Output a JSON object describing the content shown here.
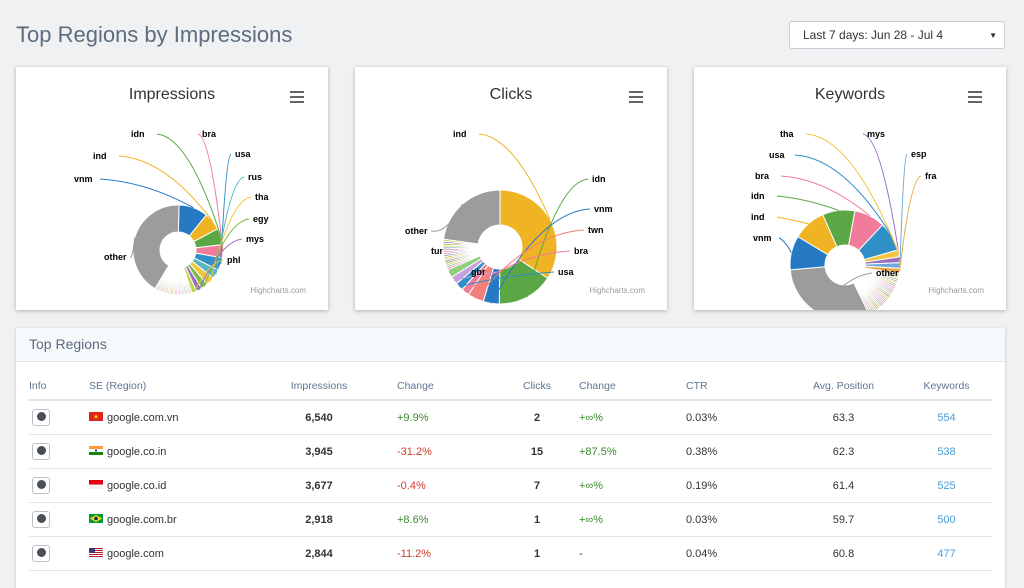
{
  "page": {
    "title": "Top Regions by Impressions"
  },
  "date_range": {
    "selected": "Last 7 days: Jun 28 - Jul 4"
  },
  "credits": "Highcharts.com",
  "colors": {
    "blue": "#2679c3",
    "orange": "#f0b323",
    "green": "#5aa845",
    "gray": "#9c9c9c",
    "pink": "#f07b9a",
    "salmon": "#f3807a",
    "teal": "#57b6c1",
    "purple": "#9b6fbd",
    "lime": "#bcd64d"
  },
  "chart_data": [
    {
      "type": "pie",
      "variant": "donut",
      "title": "Impressions",
      "slices": [
        {
          "name": "vnm",
          "value": 6540
        },
        {
          "name": "ind",
          "value": 3945
        },
        {
          "name": "idn",
          "value": 3677
        },
        {
          "name": "bra",
          "value": 2918
        },
        {
          "name": "usa",
          "value": 2844
        },
        {
          "name": "rus",
          "value": 2100
        },
        {
          "name": "tha",
          "value": 1900
        },
        {
          "name": "egy",
          "value": 1500
        },
        {
          "name": "mys",
          "value": 1300
        },
        {
          "name": "phl",
          "value": 1100
        },
        {
          "name": "other",
          "value": 26000
        }
      ]
    },
    {
      "type": "pie",
      "variant": "donut",
      "title": "Clicks",
      "slices": [
        {
          "name": "ind",
          "value": 15
        },
        {
          "name": "idn",
          "value": 7
        },
        {
          "name": "vnm",
          "value": 2
        },
        {
          "name": "twn",
          "value": 2
        },
        {
          "name": "bra",
          "value": 1
        },
        {
          "name": "usa",
          "value": 1
        },
        {
          "name": "gbr",
          "value": 1
        },
        {
          "name": "tur",
          "value": 1
        },
        {
          "name": "other",
          "value": 10
        }
      ]
    },
    {
      "type": "pie",
      "variant": "donut",
      "title": "Keywords",
      "slices": [
        {
          "name": "mys",
          "value": 95
        },
        {
          "name": "esp",
          "value": 90
        },
        {
          "name": "fra",
          "value": 85
        },
        {
          "name": "other",
          "value": 1700
        },
        {
          "name": "vnm",
          "value": 554
        },
        {
          "name": "ind",
          "value": 538
        },
        {
          "name": "idn",
          "value": 525
        },
        {
          "name": "bra",
          "value": 500
        },
        {
          "name": "usa",
          "value": 477
        },
        {
          "name": "tha",
          "value": 110
        }
      ]
    }
  ],
  "table": {
    "title": "Top Regions",
    "headers": [
      "Info",
      "SE (Region)",
      "Impressions",
      "Change",
      "Clicks",
      "Change",
      "CTR",
      "Avg. Position",
      "Keywords"
    ],
    "rows": [
      {
        "flag": "vn",
        "se": "google.com.vn",
        "impressions": "6,540",
        "imp_change": "+9.9%",
        "imp_dir": "pos",
        "clicks": "2",
        "clk_change": "+∞%",
        "clk_dir": "pos",
        "ctr": "0.03%",
        "avg_pos": "63.3",
        "keywords": "554"
      },
      {
        "flag": "in",
        "se": "google.co.in",
        "impressions": "3,945",
        "imp_change": "-31.2%",
        "imp_dir": "neg",
        "clicks": "15",
        "clk_change": "+87.5%",
        "clk_dir": "pos",
        "ctr": "0.38%",
        "avg_pos": "62.3",
        "keywords": "538"
      },
      {
        "flag": "id",
        "se": "google.co.id",
        "impressions": "3,677",
        "imp_change": "-0.4%",
        "imp_dir": "neg",
        "clicks": "7",
        "clk_change": "+∞%",
        "clk_dir": "pos",
        "ctr": "0.19%",
        "avg_pos": "61.4",
        "keywords": "525"
      },
      {
        "flag": "br",
        "se": "google.com.br",
        "impressions": "2,918",
        "imp_change": "+8.6%",
        "imp_dir": "pos",
        "clicks": "1",
        "clk_change": "+∞%",
        "clk_dir": "pos",
        "ctr": "0.03%",
        "avg_pos": "59.7",
        "keywords": "500"
      },
      {
        "flag": "us",
        "se": "google.com",
        "impressions": "2,844",
        "imp_change": "-11.2%",
        "imp_dir": "neg",
        "clicks": "1",
        "clk_change": "-",
        "clk_dir": "none",
        "ctr": "0.04%",
        "avg_pos": "60.8",
        "keywords": "477"
      }
    ]
  }
}
